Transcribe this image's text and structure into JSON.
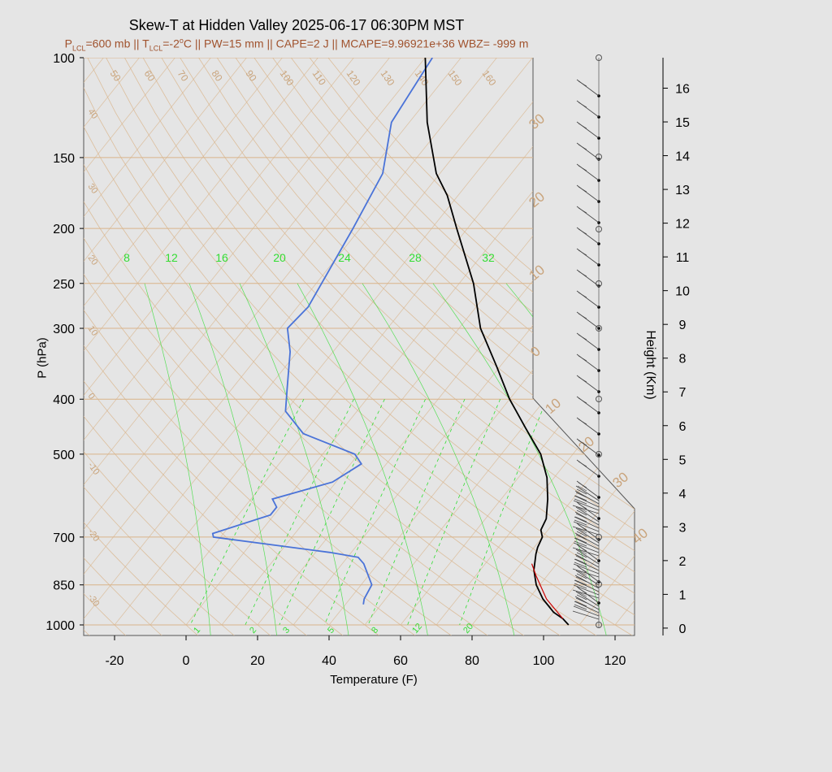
{
  "title": "Skew-T at Hidden Valley 2025-06-17 06:30PM MST",
  "subtitle": {
    "p_lcl_sym": "P",
    "p_lcl_sub": "LCL",
    "p_lcl_val": "=600 mb || ",
    "t_lcl_sym": "T",
    "t_lcl_sub": "LCL",
    "t_lcl_val": "=-2",
    "deg": "o",
    "rest": "C || PW=15 mm || CAPE=2 J || MCAPE=9.96921e+36 WBZ= -999 m"
  },
  "colors": {
    "background": "#e5e5e5",
    "guide_lines": "#d9b48a",
    "guide_text": "#c9a47c",
    "mixing_ratio": "#33dd33",
    "temperature": "#000000",
    "dewpoint": "#4a73d8",
    "parcel": "#cc0000",
    "subtitle": "#a0522d"
  },
  "chart_data": {
    "type": "skew-t",
    "title": "Skew-T at Hidden Valley 2025-06-17 06:30PM MST",
    "xlabel": "Temperature (F)",
    "ylabel": "P (hPa)",
    "y2label": "Height (Km)",
    "x_ticks": [
      "-20",
      "0",
      "20",
      "40",
      "60",
      "80",
      "100",
      "120"
    ],
    "pressure_ticks": [
      "100",
      "150",
      "200",
      "250",
      "300",
      "400",
      "500",
      "700",
      "850",
      "1000"
    ],
    "height_ticks": [
      "0",
      "1",
      "2",
      "3",
      "4",
      "5",
      "6",
      "7",
      "8",
      "9",
      "10",
      "11",
      "12",
      "13",
      "14",
      "15",
      "16"
    ],
    "isotherm_labels": [
      "30",
      "20",
      "10",
      "0",
      "10",
      "20",
      "30",
      "40"
    ],
    "dry_adiabat_labels": [
      "50",
      "60",
      "70",
      "80",
      "90",
      "100",
      "110",
      "120",
      "130",
      "140",
      "150",
      "160",
      "40",
      "30",
      "20",
      "10",
      "0",
      "-10",
      "-20",
      "-30"
    ],
    "mixing_ratio_top_labels": [
      "8",
      "12",
      "16",
      "20",
      "24",
      "28",
      "32"
    ],
    "mixing_ratio_bottom_labels": [
      "1",
      "2",
      "3",
      "5",
      "8",
      "12",
      "20"
    ],
    "series": [
      {
        "name": "Temperature",
        "pressure_hPa": [
          1000,
          975,
          950,
          900,
          850,
          800,
          750,
          730,
          700,
          680,
          650,
          600,
          550,
          500,
          450,
          400,
          350,
          300,
          250,
          200,
          175,
          160,
          130,
          100
        ],
        "temp_F": [
          107,
          104,
          100,
          94,
          89,
          85,
          82,
          81,
          80,
          78,
          77,
          73,
          68,
          61,
          51,
          40,
          29,
          16,
          4,
          -13,
          -23,
          -31,
          -45,
          -60
        ]
      },
      {
        "name": "Dewpoint",
        "pressure_hPa": [
          920,
          900,
          850,
          780,
          760,
          745,
          700,
          690,
          640,
          620,
          600,
          560,
          520,
          500,
          460,
          420,
          380,
          330,
          300,
          275,
          200,
          160,
          130,
          100
        ],
        "dewpoint_F": [
          45,
          44,
          43,
          36,
          33,
          24,
          -12,
          -13,
          -1,
          -1,
          -4,
          9,
          13,
          9,
          -10,
          -20,
          -25,
          -32,
          -38,
          -37,
          -42,
          -46,
          -55,
          -58
        ]
      },
      {
        "name": "Parcel",
        "pressure_hPa": [
          975,
          900,
          820,
          780
        ],
        "temp_F": [
          104,
          95,
          87,
          83
        ]
      }
    ]
  }
}
